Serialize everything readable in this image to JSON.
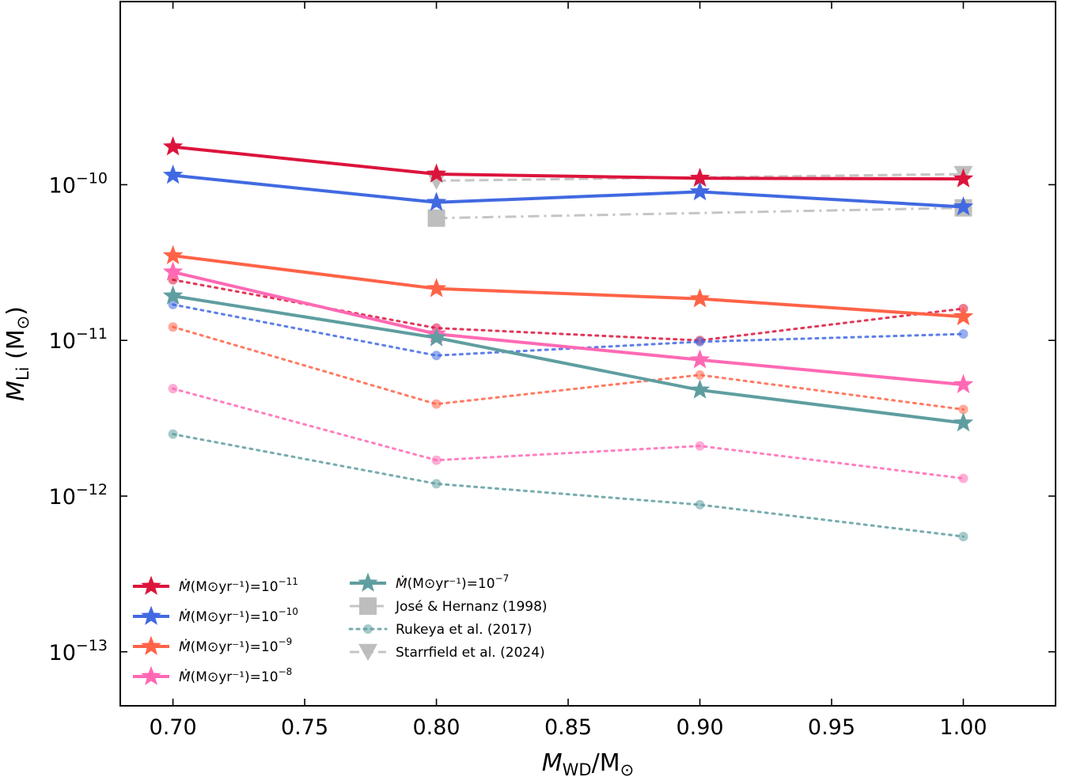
{
  "chart_data": {
    "type": "line",
    "title": "",
    "xlabel": "M_WD/M_⊙",
    "ylabel": "M_Li (M_⊙)",
    "y_scale": "log",
    "xlim": [
      0.68,
      1.035
    ],
    "ylim": [
      4.5e-14,
      1.5e-09
    ],
    "x_ticks": [
      0.7,
      0.75,
      0.8,
      0.85,
      0.9,
      0.95,
      1.0
    ],
    "x_tick_labels": [
      "0.70",
      "0.75",
      "0.80",
      "0.85",
      "0.90",
      "0.95",
      "1.00"
    ],
    "y_ticks": [
      {
        "base": "10",
        "exp": "−10",
        "value": 1e-10
      },
      {
        "base": "10",
        "exp": "−11",
        "value": 1e-11
      },
      {
        "base": "10",
        "exp": "−12",
        "value": 1e-12
      },
      {
        "base": "10",
        "exp": "−13",
        "value": 1e-13
      }
    ],
    "series": [
      {
        "id": "mdot-1e-11-this",
        "name_prefix": "Ṁ(M⊙yr⁻¹)=10",
        "name_exp": "−11",
        "color": "#DC143C",
        "style": "solid",
        "marker": "star",
        "x": [
          0.7,
          0.8,
          0.9,
          1.0
        ],
        "values": [
          1.75e-10,
          1.17e-10,
          1.1e-10,
          1.09e-10
        ],
        "legend": true
      },
      {
        "id": "mdot-1e-10-this",
        "name_prefix": "Ṁ(M⊙yr⁻¹)=10",
        "name_exp": "−10",
        "color": "#4169E1",
        "style": "solid",
        "marker": "star",
        "x": [
          0.7,
          0.8,
          0.9,
          1.0
        ],
        "values": [
          1.15e-10,
          7.7e-11,
          9e-11,
          7.2e-11
        ],
        "legend": true
      },
      {
        "id": "mdot-1e-9-this",
        "name_prefix": "Ṁ(M⊙yr⁻¹)=10",
        "name_exp": "−9",
        "color": "#FF6347",
        "style": "solid",
        "marker": "star",
        "x": [
          0.7,
          0.8,
          0.9,
          1.0
        ],
        "values": [
          3.5e-11,
          2.15e-11,
          1.85e-11,
          1.42e-11
        ],
        "legend": true
      },
      {
        "id": "mdot-1e-8-this",
        "name_prefix": "Ṁ(M⊙yr⁻¹)=10",
        "name_exp": "−8",
        "color": "#FF69B4",
        "style": "solid",
        "marker": "star",
        "x": [
          0.7,
          0.8,
          0.9,
          1.0
        ],
        "values": [
          2.75e-11,
          1.1e-11,
          7.5e-12,
          5.2e-12
        ],
        "legend": true
      },
      {
        "id": "mdot-1e-7-this",
        "name_prefix": "Ṁ(M⊙yr⁻¹)=10",
        "name_exp": "−7",
        "color": "#5F9EA0",
        "style": "solid",
        "marker": "star",
        "x": [
          0.7,
          0.8,
          0.9,
          1.0
        ],
        "values": [
          1.93e-11,
          1.04e-11,
          4.8e-12,
          2.95e-12
        ],
        "legend": true
      },
      {
        "id": "jose-hernanz-1998",
        "name": "José & Hernanz (1998)",
        "color": "#BBBBBB",
        "style": "dashdot",
        "marker": "square",
        "x": [
          0.8,
          1.0
        ],
        "values": [
          6.1e-11,
          7.1e-11
        ],
        "legend": true
      },
      {
        "id": "rukeya-1e-11",
        "color": "#DC143C",
        "style": "dotted",
        "marker": "circle",
        "x": [
          0.7,
          0.8,
          0.9,
          1.0
        ],
        "values": [
          2.45e-11,
          1.2e-11,
          1e-11,
          1.6e-11
        ],
        "legend": false
      },
      {
        "id": "rukeya-1e-10",
        "color": "#4169E1",
        "style": "dotted",
        "marker": "circle",
        "x": [
          0.7,
          0.8,
          0.9,
          1.0
        ],
        "values": [
          1.7e-11,
          8e-12,
          9.8e-12,
          1.1e-11
        ],
        "legend": false
      },
      {
        "id": "rukeya-1e-9",
        "color": "#FF6347",
        "style": "dotted",
        "marker": "circle",
        "x": [
          0.7,
          0.8,
          0.9,
          1.0
        ],
        "values": [
          1.22e-11,
          3.9e-12,
          6e-12,
          3.6e-12
        ],
        "legend": false
      },
      {
        "id": "rukeya-1e-8",
        "color": "#FF69B4",
        "style": "dotted",
        "marker": "circle",
        "x": [
          0.7,
          0.8,
          0.9,
          1.0
        ],
        "values": [
          4.9e-12,
          1.7e-12,
          2.1e-12,
          1.3e-12
        ],
        "legend": false
      },
      {
        "id": "rukeya-1e-7",
        "name": "Rukeya et al. (2017)",
        "color": "#5F9EA0",
        "style": "dotted",
        "marker": "circle",
        "x": [
          0.7,
          0.8,
          0.9,
          1.0
        ],
        "values": [
          2.5e-12,
          1.2e-12,
          8.8e-13,
          5.5e-13
        ],
        "legend": true
      },
      {
        "id": "starrfield-2024",
        "name": "Starrfield et al. (2024)",
        "color": "#BBBBBB",
        "style": "dashed",
        "marker": "triangle-down",
        "x": [
          0.8,
          1.0
        ],
        "values": [
          1.06e-10,
          1.17e-10
        ],
        "legend": true
      }
    ],
    "legend_placement": "lower-left, two columns"
  }
}
